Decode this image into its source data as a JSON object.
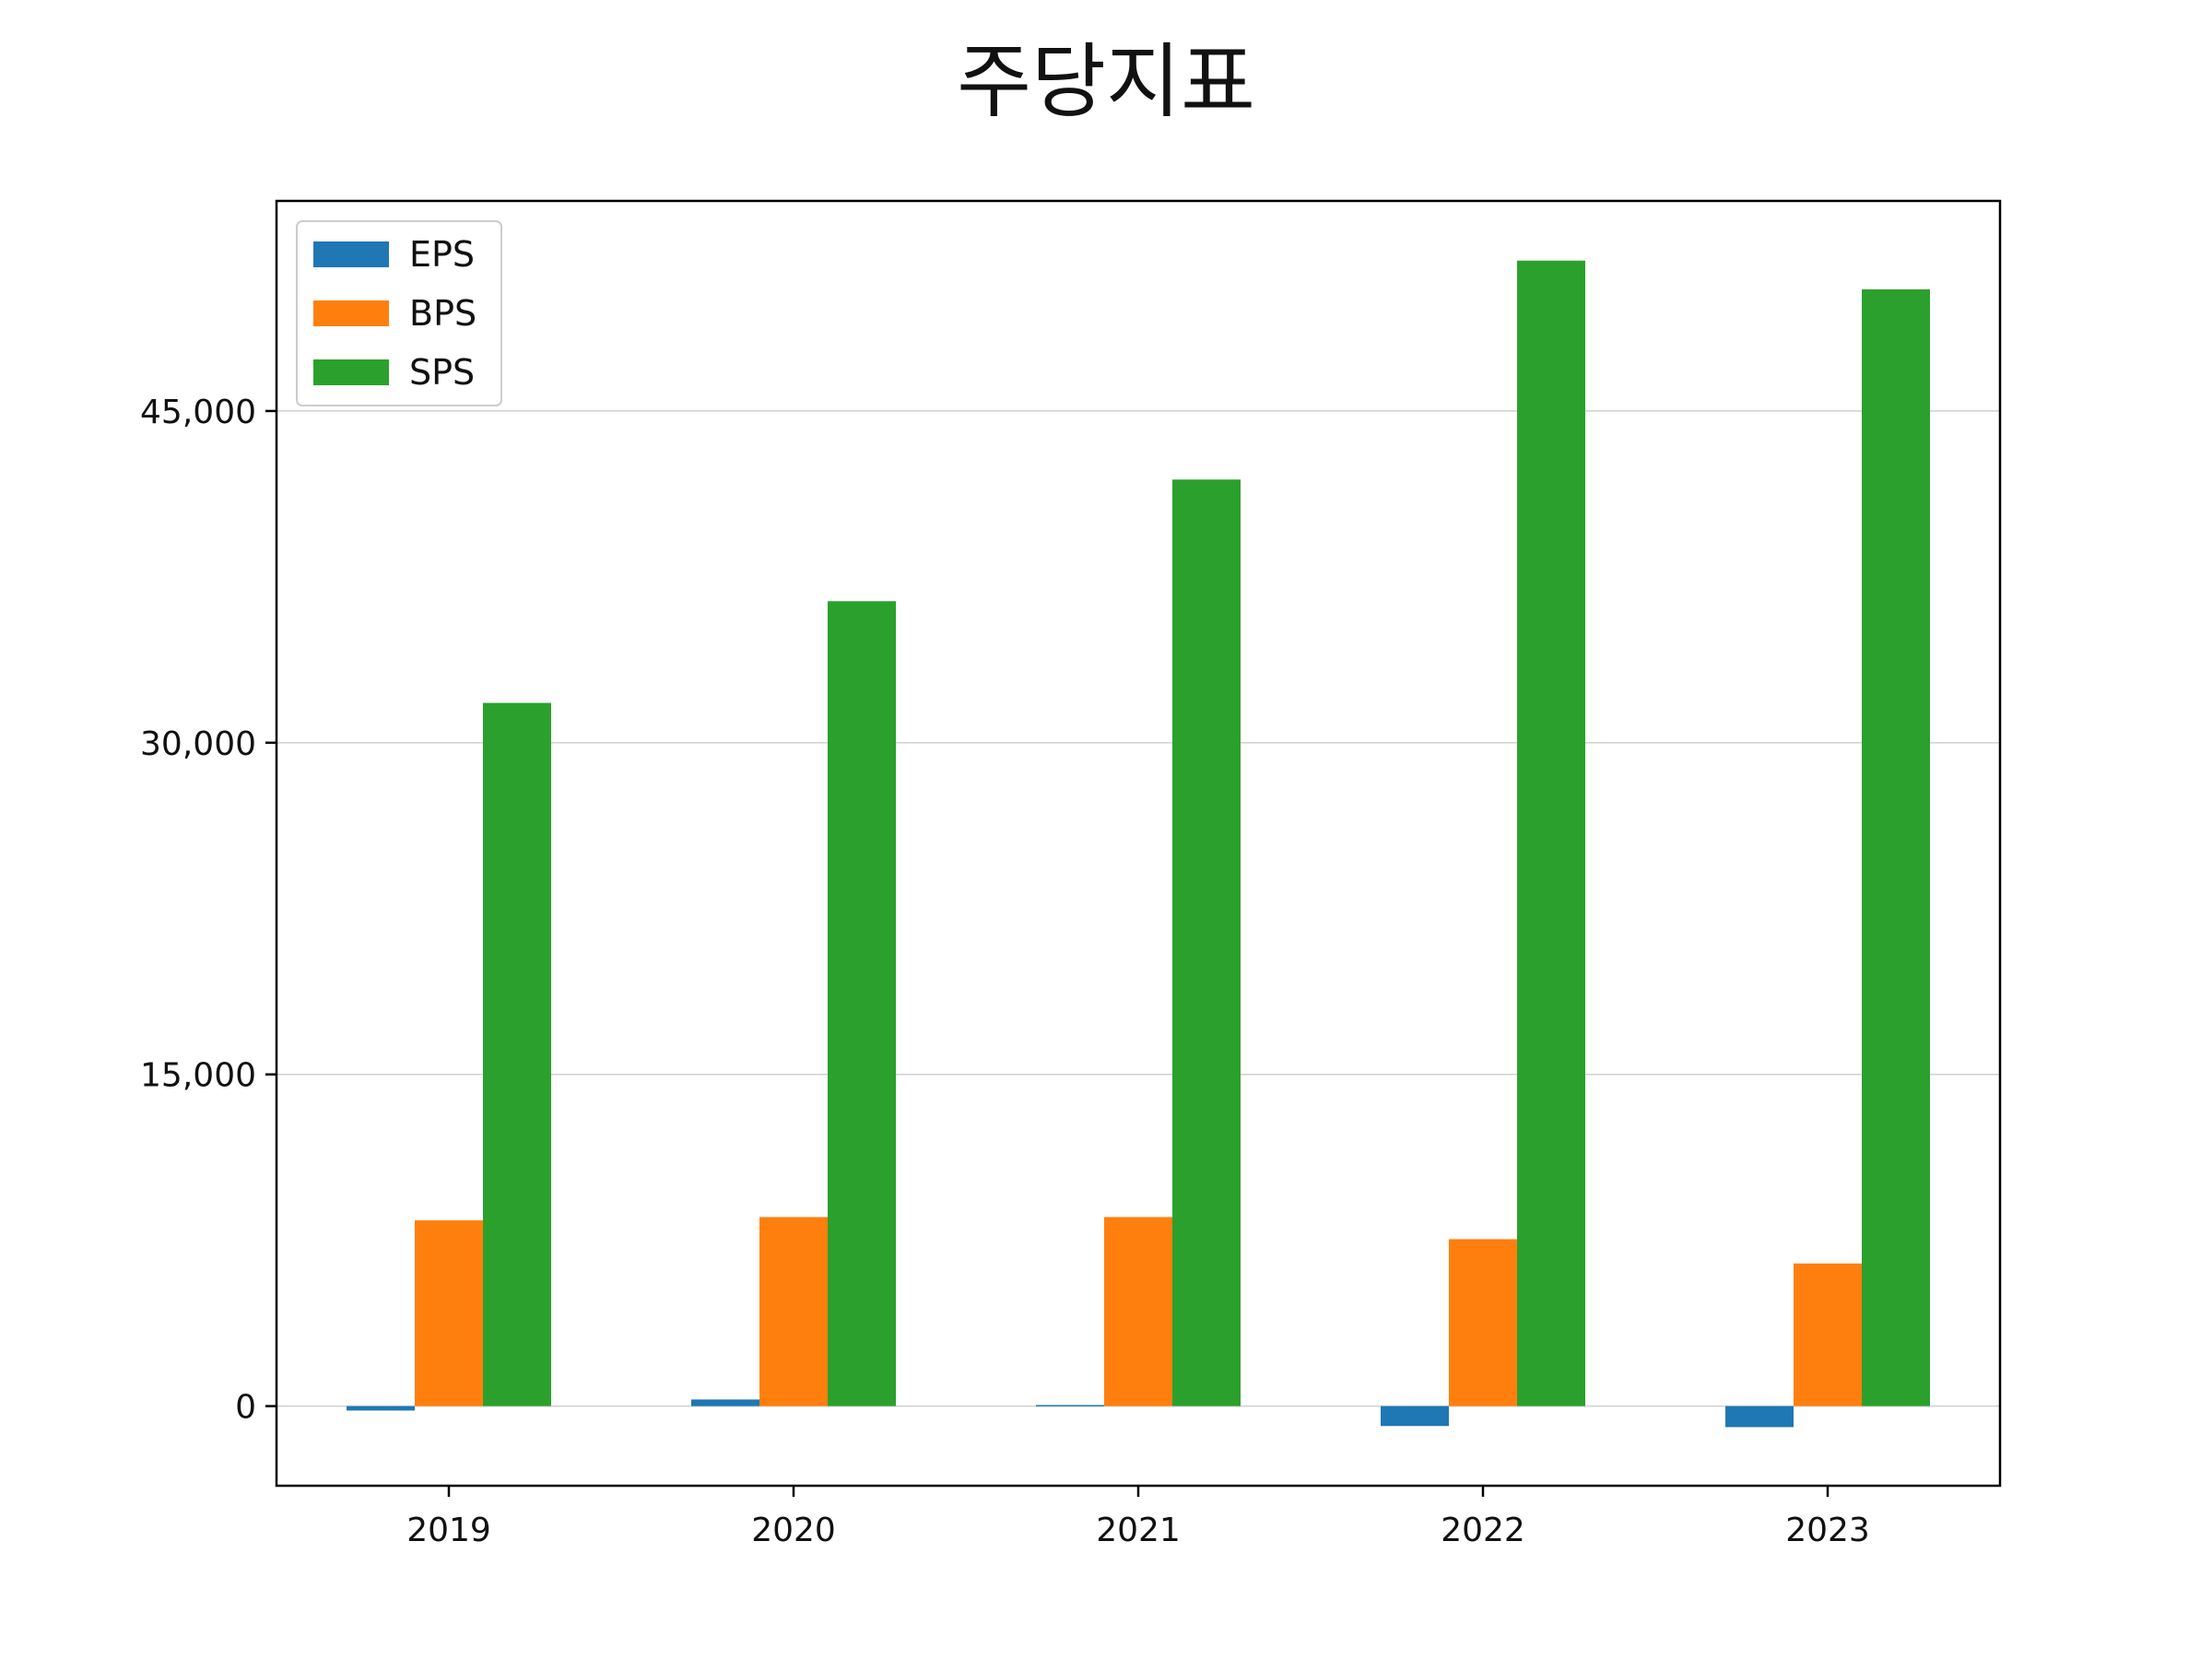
{
  "chart_data": {
    "type": "bar",
    "title": "주당지표",
    "categories": [
      "2019",
      "2020",
      "2021",
      "2022",
      "2023"
    ],
    "series": [
      {
        "name": "EPS",
        "color": "#1f77b4",
        "values": [
          -200,
          300,
          50,
          -900,
          -950
        ]
      },
      {
        "name": "BPS",
        "color": "#ff7f0e",
        "values": [
          8400,
          8550,
          8550,
          7550,
          6450
        ]
      },
      {
        "name": "SPS",
        "color": "#2ca02c",
        "values": [
          31800,
          36400,
          41900,
          51800,
          50500
        ]
      }
    ],
    "yticks": [
      0,
      15000,
      30000,
      45000
    ],
    "ytick_labels": [
      "0",
      "15,000",
      "30,000",
      "45,000"
    ],
    "ylim": [
      -3600,
      54500
    ],
    "xlabel": "",
    "ylabel": "",
    "grid": "y",
    "legend": "top-left"
  }
}
